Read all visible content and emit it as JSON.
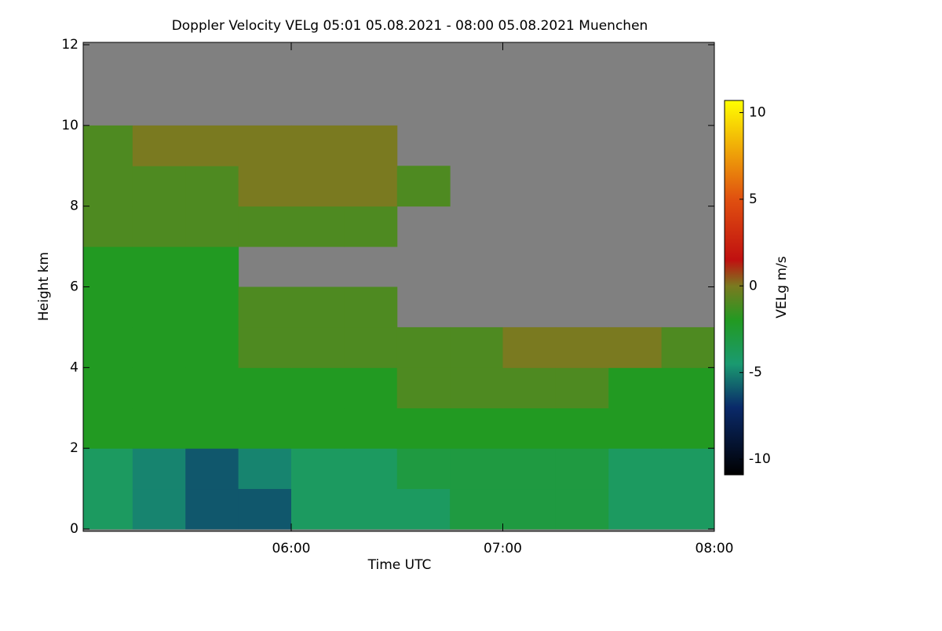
{
  "chart_data": {
    "type": "heatmap",
    "title": "Doppler Velocity VELg   05:01 05.08.2021 - 08:00 05.08.2021 Muenchen",
    "x_label": "Time UTC",
    "y_label": "Height km",
    "colorbar_label": "VELg m/s",
    "x": [
      5.125,
      5.375,
      5.625,
      5.875,
      6.125,
      6.375,
      6.625,
      6.875,
      7.125,
      7.375,
      7.625,
      7.875
    ],
    "y": [
      0.5,
      1.5,
      2.5,
      3.5,
      4.5,
      5.5,
      6.5,
      7.5,
      8.5,
      9.5,
      10.5,
      11.5
    ],
    "values": [
      [
        -4,
        -5,
        -6,
        -6,
        -4,
        -4,
        -4,
        -3,
        -3,
        -3,
        -4,
        -4
      ],
      [
        -4,
        -5,
        -6,
        -5,
        -4,
        -4,
        -3,
        -3,
        -3,
        -3,
        -4,
        -4
      ],
      [
        -2,
        -2,
        -2,
        -2,
        -2,
        -2,
        -2,
        -2,
        -2,
        -2,
        -2,
        -2
      ],
      [
        -2,
        -2,
        -2,
        -2,
        -2,
        -2,
        -1,
        -1,
        -1,
        -1,
        -2,
        -2
      ],
      [
        -2,
        -2,
        -2,
        -1,
        -1,
        -1,
        -1,
        -1,
        0,
        0,
        0,
        -1
      ],
      [
        -2,
        -2,
        -2,
        -1,
        -1,
        -1,
        null,
        null,
        null,
        null,
        null,
        null
      ],
      [
        -2,
        -2,
        -2,
        null,
        null,
        null,
        null,
        null,
        null,
        null,
        null,
        null
      ],
      [
        -1,
        -1,
        -1,
        -1,
        -1,
        -1,
        null,
        null,
        null,
        null,
        null,
        null
      ],
      [
        -1,
        -1,
        -1,
        0,
        0,
        0,
        -1,
        null,
        null,
        null,
        null,
        null
      ],
      [
        -1,
        0,
        0,
        0,
        0,
        0,
        null,
        null,
        null,
        null,
        null,
        null
      ],
      [
        null,
        null,
        null,
        null,
        null,
        null,
        null,
        null,
        null,
        null,
        null,
        null
      ],
      [
        null,
        null,
        null,
        null,
        null,
        null,
        null,
        null,
        null,
        null,
        null,
        null
      ]
    ],
    "xlim": [
      5.0167,
      8.0
    ],
    "xticks": [
      {
        "value": 6,
        "label": "06:00"
      },
      {
        "value": 7,
        "label": "07:00"
      },
      {
        "value": 8,
        "label": "08:00"
      }
    ],
    "ylim": [
      0,
      12
    ],
    "yticks": [
      0,
      2,
      4,
      6,
      8,
      10,
      12
    ],
    "zlim": [
      -10.9,
      10.7
    ],
    "zticks": [
      -10,
      -5,
      0,
      5,
      10
    ],
    "missing_color": "#808080",
    "colorscale": [
      [
        -10.9,
        "#000000"
      ],
      [
        -7,
        "#0a2a6a"
      ],
      [
        -4.5,
        "#1a9a70"
      ],
      [
        -2,
        "#229a22"
      ],
      [
        0,
        "#7a7a20"
      ],
      [
        1.5,
        "#c01010"
      ],
      [
        5,
        "#e05010"
      ],
      [
        10.7,
        "#ffff00"
      ]
    ]
  }
}
